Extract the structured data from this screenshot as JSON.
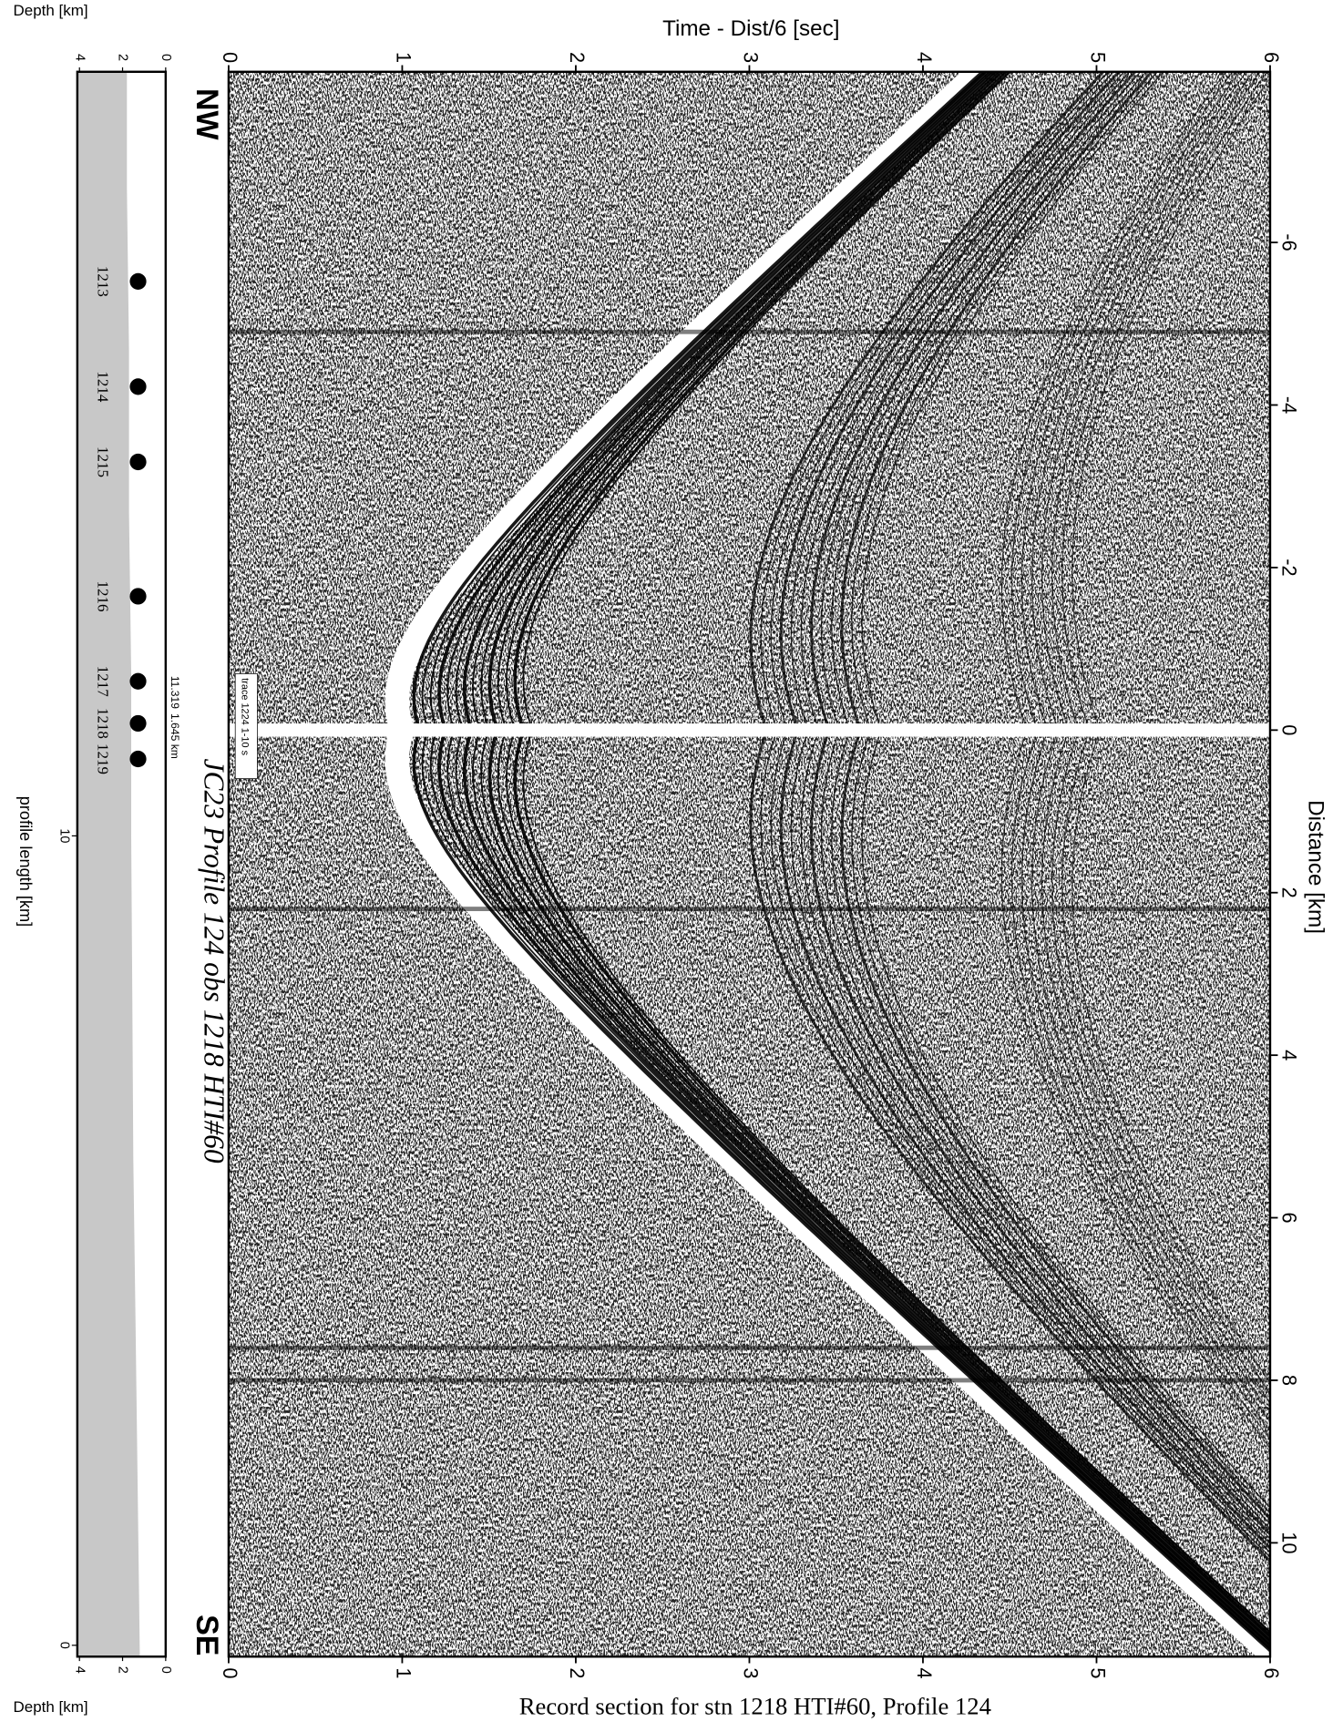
{
  "chart_data": {
    "type": "record-section",
    "title": "JC23 Profile 124 obs 1218 HTI#60",
    "x_label": "Time - Dist/6 [sec]",
    "y_label": "Distance [km]",
    "xlim": [
      0,
      6
    ],
    "xticks": [
      0,
      1,
      2,
      3,
      4,
      5,
      6
    ],
    "ylim": [
      -8.1,
      11.4
    ],
    "yticks": [
      -6,
      -4,
      -2,
      0,
      2,
      4,
      6,
      8,
      10
    ],
    "direction_labels": [
      "NW",
      "SE"
    ],
    "trace_note": "trace 1224 1-10 s",
    "caption": "Record section for stn 1218 HTI#60, Profile 124"
  },
  "location_panel": {
    "depth_label": "Depth [km]",
    "x_label": "profile length [km]",
    "depthlim": [
      0,
      4.1
    ],
    "depthticks": [
      0,
      2,
      4
    ],
    "xlim": [
      -0.14,
      19.44
    ],
    "xticks": [
      0,
      10
    ],
    "stations": [
      {
        "name": "1213",
        "position": 16.85
      },
      {
        "name": "1214",
        "position": 15.55
      },
      {
        "name": "1215",
        "position": 14.62
      },
      {
        "name": "1216",
        "position": 12.96
      },
      {
        "name": "1217",
        "position": 11.91
      },
      {
        "name": "1218",
        "position": 11.39
      },
      {
        "name": "1219",
        "position": 10.95
      }
    ],
    "position_labels": [
      "11.319",
      "1.645 km"
    ],
    "seafloor": {
      "x": [
        -0.14,
        2,
        4,
        6,
        8,
        10,
        12,
        14,
        16,
        18,
        19.44
      ],
      "depth": [
        1.2,
        1.3,
        1.4,
        1.5,
        1.55,
        1.6,
        1.6,
        1.7,
        1.7,
        1.8,
        1.8
      ]
    }
  }
}
